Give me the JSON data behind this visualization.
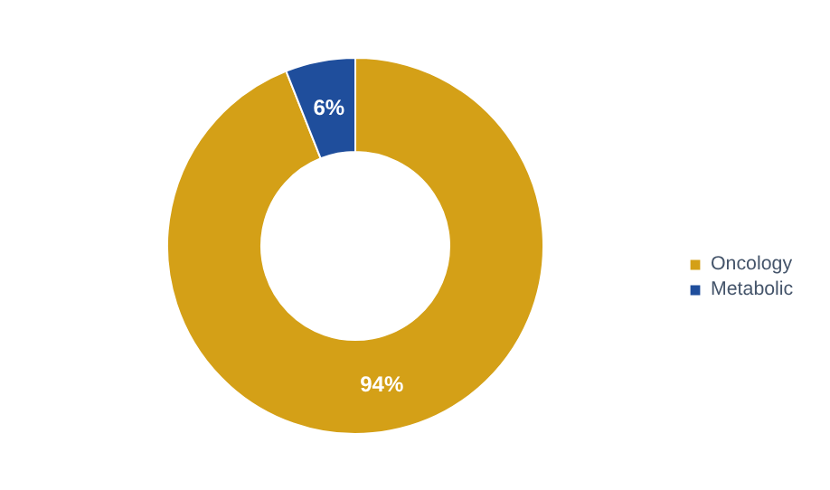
{
  "chart_data": {
    "type": "donut",
    "categories": [
      "Oncology",
      "Metabolic"
    ],
    "values": [
      94,
      6
    ],
    "colors": [
      "#d4a017",
      "#1f4e9c"
    ],
    "value_labels": [
      "94%",
      "6%"
    ],
    "legend": "right"
  }
}
